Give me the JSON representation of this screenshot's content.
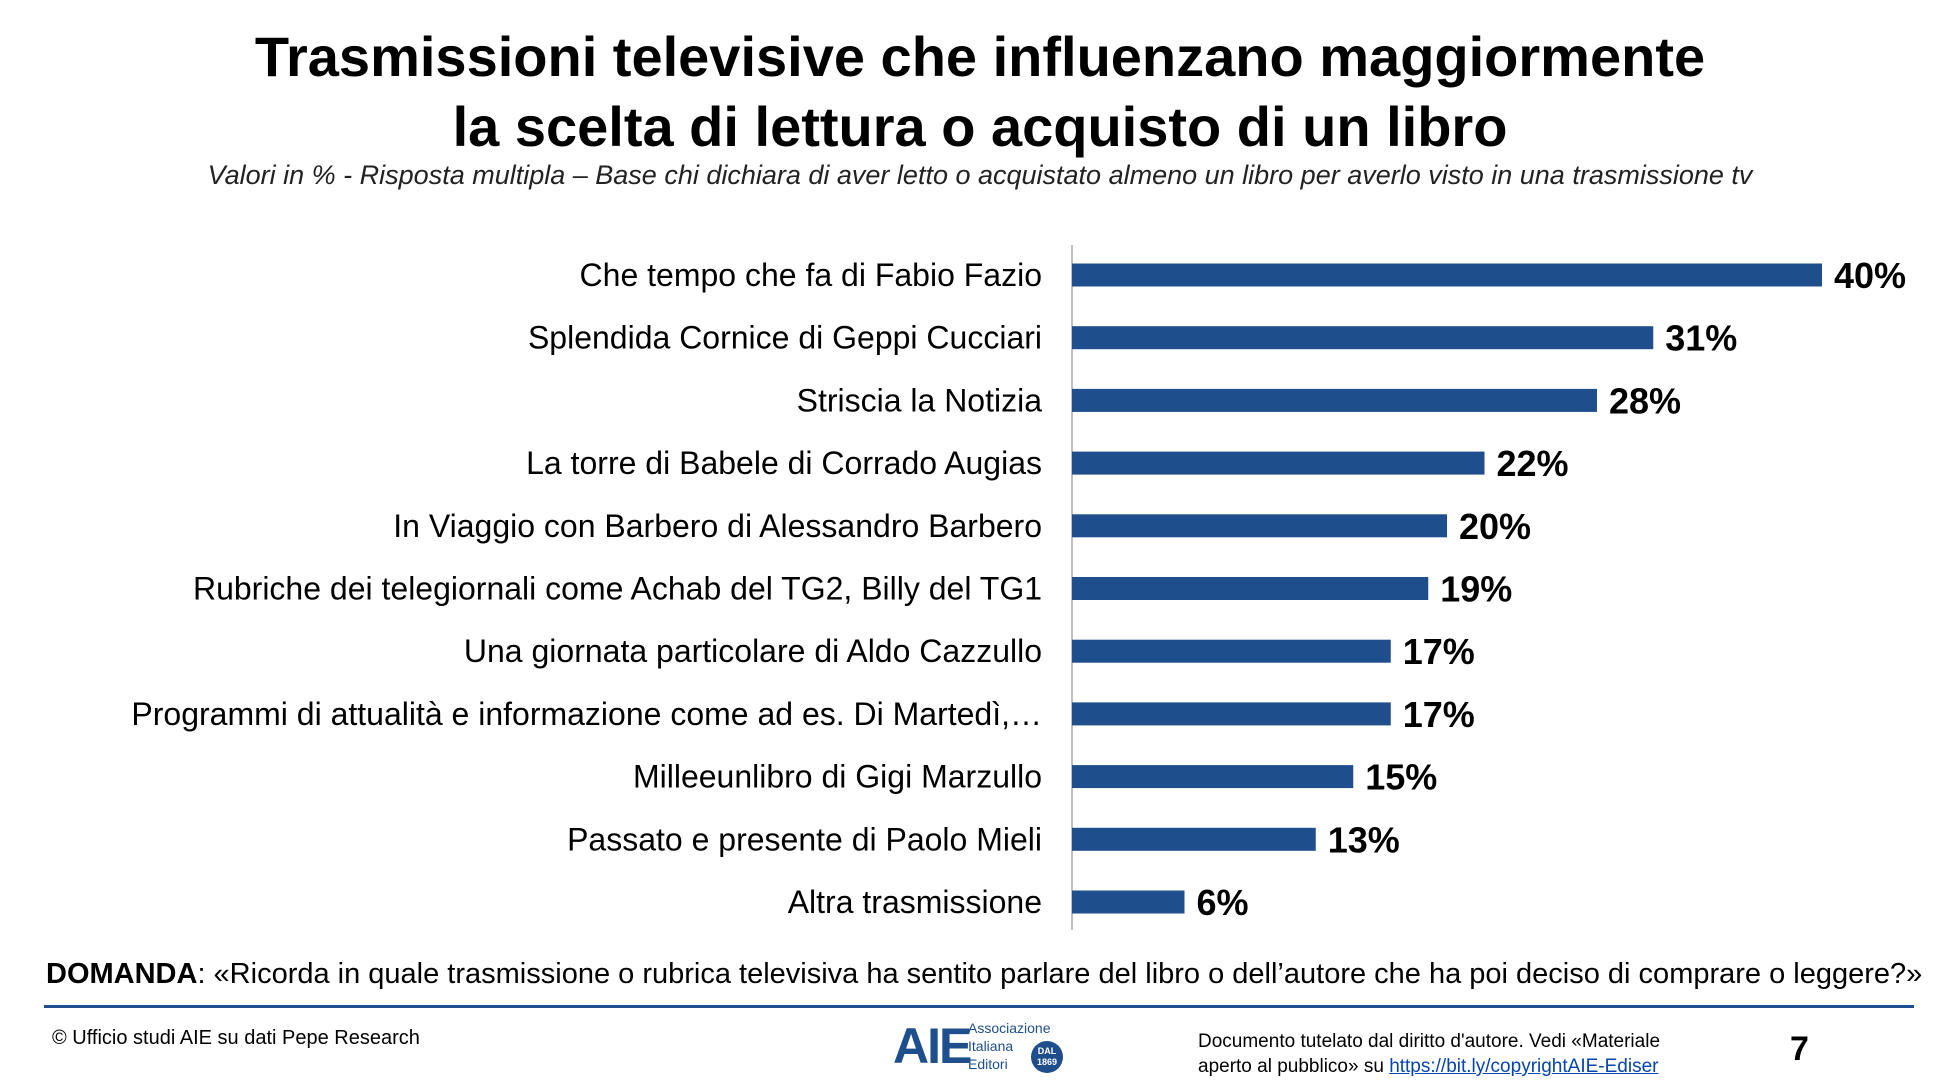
{
  "header": {
    "title_line1": "Trasmissioni televisive che influenzano maggiormente",
    "title_line2": "la scelta di lettura o acquisto di un libro",
    "subtitle": "Valori in % - Risposta multipla – Base chi dichiara di aver letto o acquistato almeno un libro per averlo visto in una trasmissione tv"
  },
  "chart_data": {
    "type": "bar",
    "orientation": "horizontal",
    "categories": [
      "Che tempo che fa di Fabio Fazio",
      "Splendida Cornice di Geppi Cucciari",
      "Striscia la Notizia",
      "La torre di Babele di Corrado Augias",
      "In Viaggio con Barbero di Alessandro Barbero",
      "Rubriche dei telegiornali come Achab del TG2, Billy del TG1",
      "Una giornata particolare di Aldo Cazzullo",
      "Programmi di attualità e informazione come ad es. Di Martedì,…",
      "Milleeunlibro di Gigi Marzullo",
      "Passato e presente di Paolo Mieli",
      "Altra trasmissione"
    ],
    "values": [
      40,
      31,
      28,
      22,
      20,
      19,
      17,
      17,
      15,
      13,
      6
    ],
    "value_labels": [
      "40%",
      "31%",
      "28%",
      "22%",
      "20%",
      "19%",
      "17%",
      "17%",
      "15%",
      "13%",
      "6%"
    ],
    "bar_color": "#1f4e8c",
    "xlim": [
      0,
      40
    ],
    "grid": false
  },
  "footer": {
    "question_label": "DOMANDA",
    "question_text": ": «Ricorda in quale trasmissione o rubrica televisiva ha sentito parlare del libro o dell’autore che ha poi deciso di comprare o leggere?»",
    "source": "© Ufficio studi AIE su dati Pepe Research",
    "logo_mark": "AIE",
    "logo_line1": "Associazione",
    "logo_line2": "Italiana",
    "logo_line3": "Editori",
    "logo_badge_line1": "DAL",
    "logo_badge_line2": "1869",
    "copyright_line1": "Documento tutelato dal diritto d'autore. Vedi «Materiale",
    "copyright_line2": "aperto al pubblico» su ",
    "copyright_link": "https://bit.ly/copyrightAIE-Ediser",
    "page_number": "7"
  }
}
